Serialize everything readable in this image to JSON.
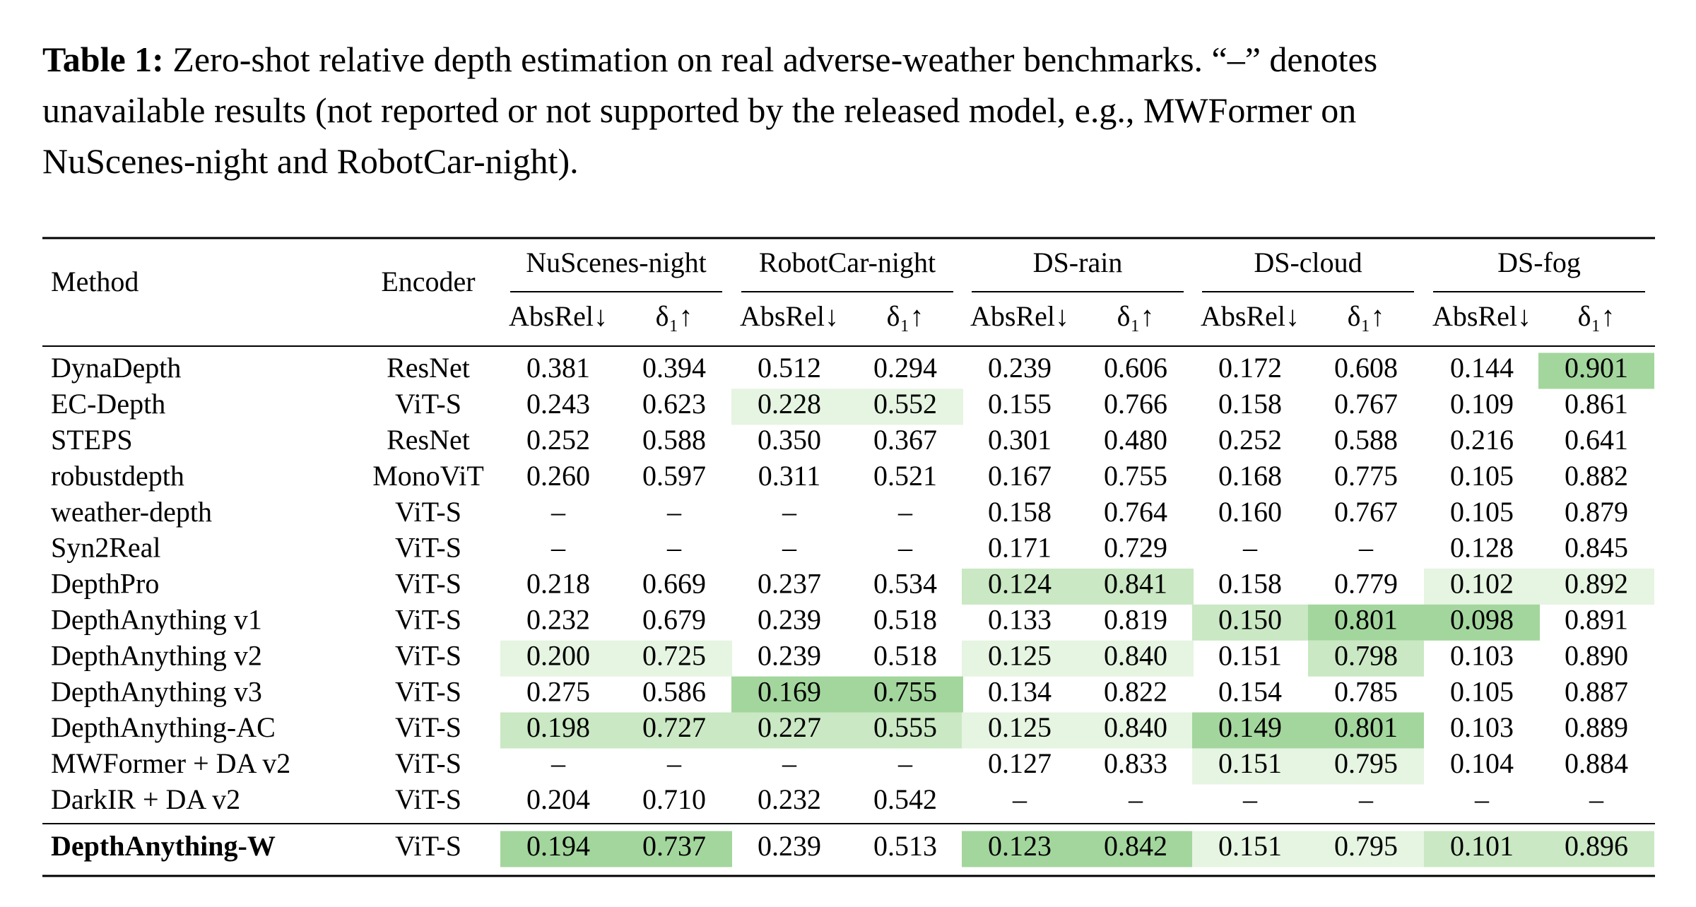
{
  "caption": {
    "label": "Table 1:",
    "lines": [
      "Zero-shot relative depth estimation on real adverse-weather benchmarks. “–” denotes",
      "unavailable results (not reported or not supported by the released model, e.g., MWFormer on",
      "NuScenes-night and RobotCar-night)."
    ]
  },
  "table": {
    "header": {
      "method": "Method",
      "encoder": "Encoder",
      "groups": [
        "NuScenes-night",
        "RobotCar-night",
        "DS-rain",
        "DS-cloud",
        "DS-fog"
      ],
      "metrics": [
        "AbsRel↓",
        "δ₁↑",
        "AbsRel↓",
        "δ₁↑",
        "AbsRel↓",
        "δ₁↑",
        "AbsRel↓",
        "δ₁↑",
        "AbsRel↓",
        "δ₁↑"
      ]
    },
    "rows": [
      [
        "DynaDepth",
        "ResNet",
        "0.381",
        "0.394",
        "0.512",
        "0.294",
        "0.239",
        "0.606",
        "0.172",
        "0.608",
        "0.144",
        "0.901"
      ],
      [
        "EC-Depth",
        "ViT-S",
        "0.243",
        "0.623",
        "0.228",
        "0.552",
        "0.155",
        "0.766",
        "0.158",
        "0.767",
        "0.109",
        "0.861"
      ],
      [
        "STEPS",
        "ResNet",
        "0.252",
        "0.588",
        "0.350",
        "0.367",
        "0.301",
        "0.480",
        "0.252",
        "0.588",
        "0.216",
        "0.641"
      ],
      [
        "robustdepth",
        "MonoViT",
        "0.260",
        "0.597",
        "0.311",
        "0.521",
        "0.167",
        "0.755",
        "0.168",
        "0.775",
        "0.105",
        "0.882"
      ],
      [
        "weather-depth",
        "ViT-S",
        "–",
        "–",
        "–",
        "–",
        "0.158",
        "0.764",
        "0.160",
        "0.767",
        "0.105",
        "0.879"
      ],
      [
        "Syn2Real",
        "ViT-S",
        "–",
        "–",
        "–",
        "–",
        "0.171",
        "0.729",
        "–",
        "–",
        "0.128",
        "0.845"
      ],
      [
        "DepthPro",
        "ViT-S",
        "0.218",
        "0.669",
        "0.237",
        "0.534",
        "0.124",
        "0.841",
        "0.158",
        "0.779",
        "0.102",
        "0.892"
      ],
      [
        "DepthAnything v1",
        "ViT-S",
        "0.232",
        "0.679",
        "0.239",
        "0.518",
        "0.133",
        "0.819",
        "0.150",
        "0.801",
        "0.098",
        "0.891"
      ],
      [
        "DepthAnything v2",
        "ViT-S",
        "0.200",
        "0.725",
        "0.239",
        "0.518",
        "0.125",
        "0.840",
        "0.151",
        "0.798",
        "0.103",
        "0.890"
      ],
      [
        "DepthAnything v3",
        "ViT-S",
        "0.275",
        "0.586",
        "0.169",
        "0.755",
        "0.134",
        "0.822",
        "0.154",
        "0.785",
        "0.105",
        "0.887"
      ],
      [
        "DepthAnything-AC",
        "ViT-S",
        "0.198",
        "0.727",
        "0.227",
        "0.555",
        "0.125",
        "0.840",
        "0.149",
        "0.801",
        "0.103",
        "0.889"
      ],
      [
        "MWFormer + DA v2",
        "ViT-S",
        "–",
        "–",
        "–",
        "–",
        "0.127",
        "0.833",
        "0.151",
        "0.795",
        "0.104",
        "0.884"
      ],
      [
        "DarkIR + DA v2",
        "ViT-S",
        "0.204",
        "0.710",
        "0.232",
        "0.542",
        "–",
        "–",
        "–",
        "–",
        "–",
        "–"
      ],
      [
        "DepthAnything-W",
        "ViT-S",
        "0.194",
        "0.737",
        "0.239",
        "0.513",
        "0.123",
        "0.842",
        "0.151",
        "0.795",
        "0.101",
        "0.896"
      ]
    ],
    "shading": [
      {
        "row": 0,
        "col": 11,
        "color": "#a3d69d"
      },
      {
        "row": 1,
        "col": 4,
        "color": "#e6f4e2"
      },
      {
        "row": 1,
        "col": 5,
        "color": "#e6f4e2"
      },
      {
        "row": 6,
        "col": 6,
        "color": "#c9e8c3"
      },
      {
        "row": 6,
        "col": 7,
        "color": "#c9e8c3"
      },
      {
        "row": 6,
        "col": 10,
        "color": "#e6f4e2"
      },
      {
        "row": 6,
        "col": 11,
        "color": "#e6f4e2"
      },
      {
        "row": 7,
        "col": 8,
        "color": "#c9e8c3"
      },
      {
        "row": 7,
        "col": 9,
        "color": "#a3d69d"
      },
      {
        "row": 7,
        "col": 10,
        "color": "#a3d69d"
      },
      {
        "row": 8,
        "col": 2,
        "color": "#e6f4e2"
      },
      {
        "row": 8,
        "col": 3,
        "color": "#e6f4e2"
      },
      {
        "row": 8,
        "col": 6,
        "color": "#e6f4e2"
      },
      {
        "row": 8,
        "col": 7,
        "color": "#e6f4e2"
      },
      {
        "row": 8,
        "col": 9,
        "color": "#c9e8c3"
      },
      {
        "row": 9,
        "col": 4,
        "color": "#a3d69d"
      },
      {
        "row": 9,
        "col": 5,
        "color": "#a3d69d"
      },
      {
        "row": 10,
        "col": 2,
        "color": "#c9e8c3"
      },
      {
        "row": 10,
        "col": 3,
        "color": "#c9e8c3"
      },
      {
        "row": 10,
        "col": 4,
        "color": "#c9e8c3"
      },
      {
        "row": 10,
        "col": 5,
        "color": "#c9e8c3"
      },
      {
        "row": 10,
        "col": 6,
        "color": "#e6f4e2"
      },
      {
        "row": 10,
        "col": 7,
        "color": "#e6f4e2"
      },
      {
        "row": 10,
        "col": 8,
        "color": "#a3d69d"
      },
      {
        "row": 10,
        "col": 9,
        "color": "#a3d69d"
      },
      {
        "row": 11,
        "col": 8,
        "color": "#e6f4e2"
      },
      {
        "row": 11,
        "col": 9,
        "color": "#e6f4e2"
      },
      {
        "row": 13,
        "col": 2,
        "color": "#a3d69d"
      },
      {
        "row": 13,
        "col": 3,
        "color": "#a3d69d"
      },
      {
        "row": 13,
        "col": 6,
        "color": "#a3d69d"
      },
      {
        "row": 13,
        "col": 7,
        "color": "#a3d69d"
      },
      {
        "row": 13,
        "col": 8,
        "color": "#e6f4e2"
      },
      {
        "row": 13,
        "col": 9,
        "color": "#e6f4e2"
      },
      {
        "row": 13,
        "col": 10,
        "color": "#c9e8c3"
      },
      {
        "row": 13,
        "col": 11,
        "color": "#c9e8c3"
      }
    ]
  }
}
